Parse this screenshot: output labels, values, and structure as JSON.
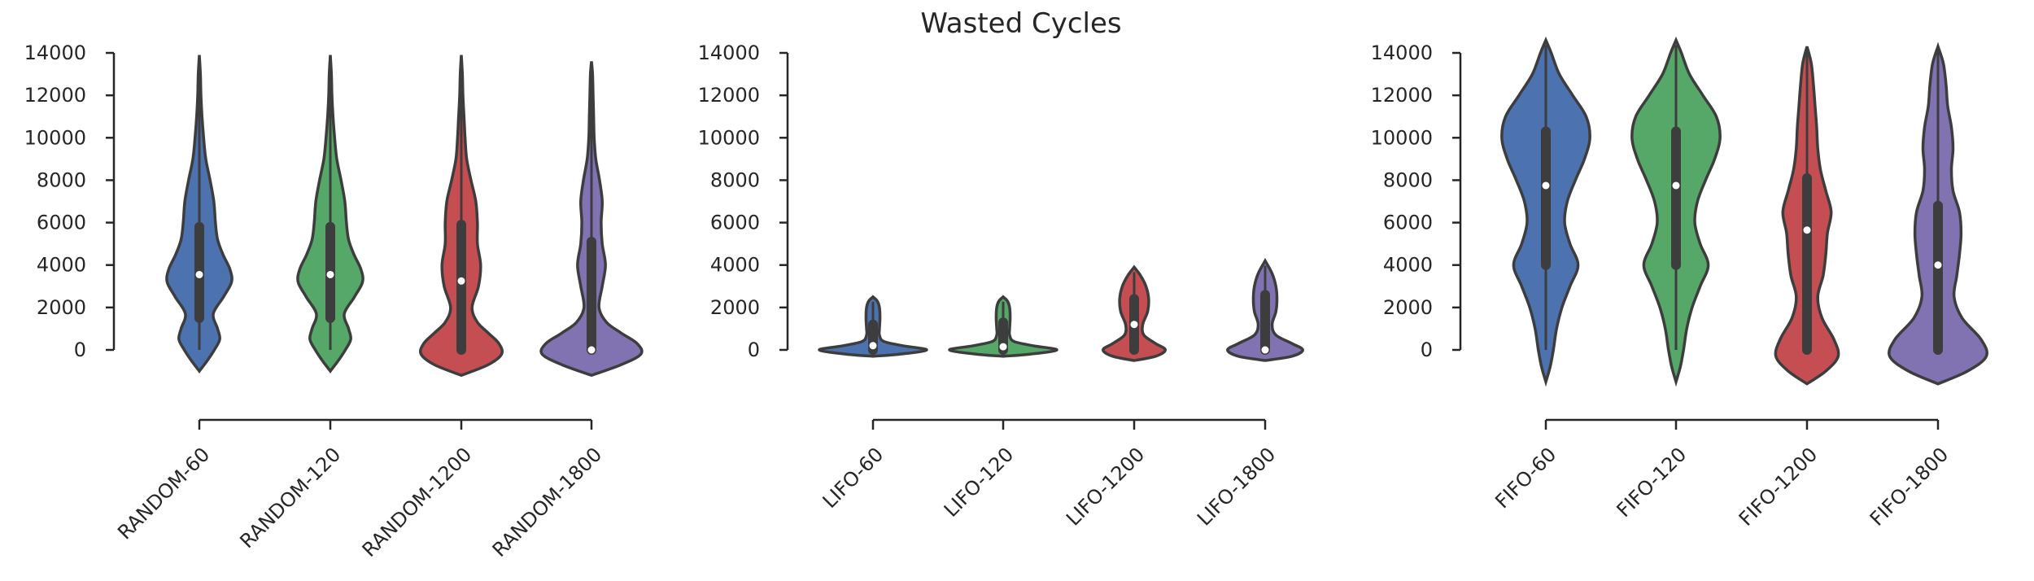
{
  "title": "Wasted Cycles",
  "chart_data": [
    {
      "type": "violin",
      "ylim": [
        0,
        14000
      ],
      "yticks": [
        0,
        2000,
        4000,
        6000,
        8000,
        10000,
        12000,
        14000
      ],
      "categories": [
        "RANDOM-60",
        "RANDOM-120",
        "RANDOM-1200",
        "RANDOM-1800"
      ],
      "colors": [
        "#4c72b0",
        "#55a868",
        "#c44e52",
        "#8172b2"
      ],
      "series": [
        {
          "range": [
            -1000,
            13900
          ],
          "median": 3550,
          "q1": 1500,
          "q3": 5800,
          "profile": [
            [
              -1000,
              0
            ],
            [
              -500,
              0.15
            ],
            [
              0,
              0.28
            ],
            [
              500,
              0.38
            ],
            [
              1000,
              0.34
            ],
            [
              1700,
              0.26
            ],
            [
              2500,
              0.45
            ],
            [
              3200,
              0.6
            ],
            [
              3800,
              0.57
            ],
            [
              4500,
              0.44
            ],
            [
              5200,
              0.34
            ],
            [
              6000,
              0.3
            ],
            [
              7000,
              0.27
            ],
            [
              8000,
              0.2
            ],
            [
              9000,
              0.12
            ],
            [
              10000,
              0.08
            ],
            [
              11000,
              0.05
            ],
            [
              12000,
              0.03
            ],
            [
              13000,
              0.02
            ],
            [
              13900,
              0
            ]
          ]
        },
        {
          "range": [
            -1000,
            13900
          ],
          "median": 3550,
          "q1": 1500,
          "q3": 5800,
          "profile": [
            [
              -1000,
              0
            ],
            [
              -500,
              0.15
            ],
            [
              0,
              0.28
            ],
            [
              500,
              0.38
            ],
            [
              1000,
              0.34
            ],
            [
              1700,
              0.26
            ],
            [
              2500,
              0.45
            ],
            [
              3200,
              0.6
            ],
            [
              3800,
              0.57
            ],
            [
              4500,
              0.44
            ],
            [
              5200,
              0.34
            ],
            [
              6000,
              0.3
            ],
            [
              7000,
              0.27
            ],
            [
              8000,
              0.2
            ],
            [
              9000,
              0.12
            ],
            [
              10000,
              0.08
            ],
            [
              11000,
              0.05
            ],
            [
              12000,
              0.03
            ],
            [
              13000,
              0.02
            ],
            [
              13900,
              0
            ]
          ]
        },
        {
          "range": [
            -1200,
            13900
          ],
          "median": 3250,
          "q1": 0,
          "q3": 5900,
          "profile": [
            [
              -1200,
              0
            ],
            [
              -700,
              0.5
            ],
            [
              -200,
              0.75
            ],
            [
              300,
              0.7
            ],
            [
              800,
              0.5
            ],
            [
              1300,
              0.3
            ],
            [
              2000,
              0.2
            ],
            [
              3000,
              0.32
            ],
            [
              4000,
              0.36
            ],
            [
              5000,
              0.3
            ],
            [
              6000,
              0.3
            ],
            [
              7000,
              0.27
            ],
            [
              8000,
              0.18
            ],
            [
              9000,
              0.1
            ],
            [
              10000,
              0.07
            ],
            [
              11000,
              0.05
            ],
            [
              12000,
              0.03
            ],
            [
              13000,
              0.02
            ],
            [
              13900,
              0
            ]
          ]
        },
        {
          "range": [
            -1200,
            13600
          ],
          "median": 0,
          "q1": 0,
          "q3": 5100,
          "profile": [
            [
              -1200,
              0
            ],
            [
              -700,
              0.55
            ],
            [
              -200,
              0.92
            ],
            [
              300,
              0.85
            ],
            [
              800,
              0.55
            ],
            [
              1300,
              0.28
            ],
            [
              2000,
              0.14
            ],
            [
              3000,
              0.2
            ],
            [
              4000,
              0.26
            ],
            [
              5000,
              0.2
            ],
            [
              6000,
              0.18
            ],
            [
              7000,
              0.2
            ],
            [
              8000,
              0.15
            ],
            [
              9000,
              0.08
            ],
            [
              10000,
              0.05
            ],
            [
              11000,
              0.04
            ],
            [
              12000,
              0.03
            ],
            [
              13000,
              0.02
            ],
            [
              13600,
              0
            ]
          ]
        }
      ]
    },
    {
      "type": "violin",
      "ylim": [
        0,
        14000
      ],
      "yticks": [
        0,
        2000,
        4000,
        6000,
        8000,
        10000,
        12000,
        14000
      ],
      "categories": [
        "LIFO-60",
        "LIFO-120",
        "LIFO-1200",
        "LIFO-1800"
      ],
      "colors": [
        "#4c72b0",
        "#55a868",
        "#c44e52",
        "#8172b2"
      ],
      "series": [
        {
          "range": [
            -300,
            2500
          ],
          "median": 200,
          "q1": 0,
          "q3": 1200,
          "profile": [
            [
              -300,
              0
            ],
            [
              -200,
              0.5
            ],
            [
              0,
              1.0
            ],
            [
              200,
              0.55
            ],
            [
              400,
              0.2
            ],
            [
              700,
              0.12
            ],
            [
              1000,
              0.12
            ],
            [
              1500,
              0.13
            ],
            [
              2000,
              0.12
            ],
            [
              2300,
              0.08
            ],
            [
              2500,
              0
            ]
          ]
        },
        {
          "range": [
            -300,
            2500
          ],
          "median": 150,
          "q1": 0,
          "q3": 1300,
          "profile": [
            [
              -300,
              0
            ],
            [
              -200,
              0.5
            ],
            [
              0,
              1.0
            ],
            [
              200,
              0.55
            ],
            [
              400,
              0.2
            ],
            [
              700,
              0.12
            ],
            [
              1000,
              0.12
            ],
            [
              1500,
              0.13
            ],
            [
              2000,
              0.12
            ],
            [
              2300,
              0.08
            ],
            [
              2500,
              0
            ]
          ]
        },
        {
          "range": [
            -500,
            3900
          ],
          "median": 1200,
          "q1": 0,
          "q3": 2400,
          "profile": [
            [
              -500,
              0
            ],
            [
              -300,
              0.4
            ],
            [
              0,
              0.58
            ],
            [
              300,
              0.4
            ],
            [
              700,
              0.18
            ],
            [
              1200,
              0.16
            ],
            [
              1800,
              0.25
            ],
            [
              2400,
              0.27
            ],
            [
              3000,
              0.22
            ],
            [
              3500,
              0.12
            ],
            [
              3900,
              0
            ]
          ]
        },
        {
          "range": [
            -500,
            4200
          ],
          "median": 0,
          "q1": 0,
          "q3": 2600,
          "profile": [
            [
              -500,
              0
            ],
            [
              -300,
              0.5
            ],
            [
              0,
              0.7
            ],
            [
              300,
              0.5
            ],
            [
              700,
              0.2
            ],
            [
              1200,
              0.13
            ],
            [
              1800,
              0.2
            ],
            [
              2400,
              0.22
            ],
            [
              3000,
              0.2
            ],
            [
              3600,
              0.13
            ],
            [
              4200,
              0
            ]
          ]
        }
      ]
    },
    {
      "type": "violin",
      "ylim": [
        0,
        14000
      ],
      "yticks": [
        0,
        2000,
        4000,
        6000,
        8000,
        10000,
        12000,
        14000
      ],
      "categories": [
        "FIFO-60",
        "FIFO-120",
        "FIFO-1200",
        "FIFO-1800"
      ],
      "colors": [
        "#4c72b0",
        "#55a868",
        "#c44e52",
        "#8172b2"
      ],
      "series": [
        {
          "range": [
            -1500,
            14600
          ],
          "median": 7750,
          "q1": 4000,
          "q3": 10300,
          "profile": [
            [
              -1500,
              0
            ],
            [
              -800,
              0.08
            ],
            [
              0,
              0.14
            ],
            [
              1000,
              0.2
            ],
            [
              2000,
              0.3
            ],
            [
              3000,
              0.45
            ],
            [
              4000,
              0.6
            ],
            [
              5000,
              0.45
            ],
            [
              6000,
              0.35
            ],
            [
              7000,
              0.4
            ],
            [
              8000,
              0.55
            ],
            [
              9000,
              0.72
            ],
            [
              10000,
              0.82
            ],
            [
              11000,
              0.75
            ],
            [
              12000,
              0.5
            ],
            [
              13000,
              0.25
            ],
            [
              14000,
              0.1
            ],
            [
              14600,
              0
            ]
          ]
        },
        {
          "range": [
            -1500,
            14600
          ],
          "median": 7750,
          "q1": 4000,
          "q3": 10300,
          "profile": [
            [
              -1500,
              0
            ],
            [
              -800,
              0.08
            ],
            [
              0,
              0.14
            ],
            [
              1000,
              0.2
            ],
            [
              2000,
              0.3
            ],
            [
              3000,
              0.45
            ],
            [
              4000,
              0.6
            ],
            [
              5000,
              0.45
            ],
            [
              6000,
              0.35
            ],
            [
              7000,
              0.4
            ],
            [
              8000,
              0.55
            ],
            [
              9000,
              0.72
            ],
            [
              10000,
              0.82
            ],
            [
              11000,
              0.75
            ],
            [
              12000,
              0.5
            ],
            [
              13000,
              0.25
            ],
            [
              14000,
              0.1
            ],
            [
              14600,
              0
            ]
          ]
        },
        {
          "range": [
            -1600,
            14300
          ],
          "median": 5650,
          "q1": 0,
          "q3": 8100,
          "profile": [
            [
              -1600,
              0
            ],
            [
              -1000,
              0.35
            ],
            [
              -300,
              0.58
            ],
            [
              500,
              0.5
            ],
            [
              1500,
              0.28
            ],
            [
              2500,
              0.2
            ],
            [
              3500,
              0.3
            ],
            [
              4500,
              0.35
            ],
            [
              5500,
              0.38
            ],
            [
              6500,
              0.45
            ],
            [
              7500,
              0.35
            ],
            [
              8500,
              0.25
            ],
            [
              9500,
              0.2
            ],
            [
              10500,
              0.18
            ],
            [
              11500,
              0.15
            ],
            [
              12500,
              0.12
            ],
            [
              13500,
              0.08
            ],
            [
              14300,
              0
            ]
          ]
        },
        {
          "range": [
            -1600,
            14300
          ],
          "median": 4000,
          "q1": 0,
          "q3": 6800,
          "profile": [
            [
              -1600,
              0
            ],
            [
              -1000,
              0.55
            ],
            [
              -300,
              0.9
            ],
            [
              500,
              0.8
            ],
            [
              1500,
              0.45
            ],
            [
              2500,
              0.3
            ],
            [
              3500,
              0.35
            ],
            [
              4500,
              0.4
            ],
            [
              5500,
              0.43
            ],
            [
              6500,
              0.4
            ],
            [
              7500,
              0.28
            ],
            [
              8500,
              0.25
            ],
            [
              9500,
              0.28
            ],
            [
              10500,
              0.25
            ],
            [
              11500,
              0.18
            ],
            [
              12500,
              0.15
            ],
            [
              13500,
              0.1
            ],
            [
              14300,
              0
            ]
          ]
        }
      ]
    }
  ]
}
